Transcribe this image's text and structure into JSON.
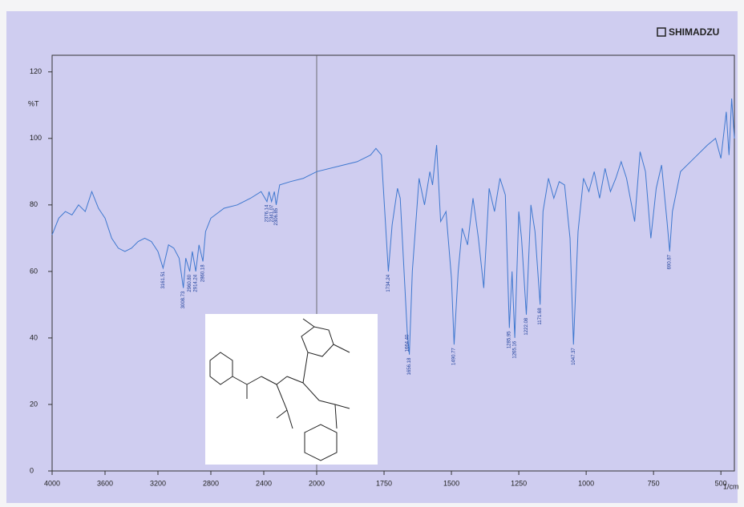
{
  "chart_data": {
    "type": "line",
    "brand": "SHIMADZU",
    "y_label": "%T",
    "x_label": "1/cm",
    "x_scale_break": 2000,
    "xlim": [
      4000,
      450
    ],
    "ylim": [
      0,
      125
    ],
    "xticks": [
      4000,
      3600,
      3200,
      2800,
      2400,
      2000,
      1750,
      1500,
      1250,
      1000,
      750,
      500
    ],
    "yticks": [
      0,
      20,
      40,
      60,
      80,
      100,
      120
    ],
    "color": "#3f78cf",
    "x": [
      4000,
      3950,
      3900,
      3850,
      3800,
      3750,
      3700,
      3650,
      3600,
      3550,
      3500,
      3450,
      3400,
      3350,
      3300,
      3250,
      3200,
      3161,
      3120,
      3080,
      3040,
      3008,
      2990,
      2960,
      2940,
      2914,
      2890,
      2860,
      2840,
      2800,
      2700,
      2600,
      2500,
      2420,
      2376,
      2360,
      2341,
      2320,
      2306,
      2280,
      2200,
      2100,
      2000,
      1900,
      1850,
      1800,
      1780,
      1760,
      1734,
      1720,
      1700,
      1690,
      1664,
      1656,
      1645,
      1620,
      1600,
      1580,
      1570,
      1555,
      1540,
      1520,
      1500,
      1490,
      1475,
      1460,
      1440,
      1420,
      1400,
      1380,
      1360,
      1340,
      1320,
      1300,
      1285,
      1275,
      1265,
      1250,
      1240,
      1222,
      1205,
      1190,
      1171,
      1160,
      1140,
      1120,
      1100,
      1080,
      1060,
      1047,
      1030,
      1010,
      990,
      970,
      950,
      930,
      910,
      890,
      870,
      850,
      820,
      800,
      780,
      760,
      740,
      720,
      700,
      690,
      680,
      650,
      600,
      550,
      520,
      500,
      480,
      470,
      460,
      450
    ],
    "values": [
      71,
      76,
      78,
      77,
      80,
      78,
      84,
      79,
      76,
      70,
      67,
      66,
      67,
      69,
      70,
      69,
      66,
      61,
      68,
      67,
      64,
      55,
      64,
      60,
      66,
      60,
      68,
      63,
      72,
      76,
      79,
      80,
      82,
      84,
      81,
      84,
      81,
      84,
      80,
      86,
      87,
      88,
      90,
      92,
      93,
      95,
      97,
      95,
      60,
      74,
      85,
      82,
      42,
      35,
      60,
      88,
      80,
      90,
      86,
      98,
      75,
      78,
      58,
      38,
      60,
      73,
      68,
      82,
      70,
      55,
      85,
      78,
      88,
      83,
      43,
      60,
      40,
      78,
      70,
      47,
      80,
      72,
      50,
      78,
      88,
      82,
      87,
      86,
      70,
      38,
      72,
      88,
      84,
      90,
      82,
      91,
      84,
      88,
      93,
      88,
      75,
      96,
      90,
      70,
      85,
      92,
      75,
      66,
      78,
      90,
      94,
      98,
      100,
      94,
      108,
      95,
      112,
      100
    ],
    "peaks": [
      {
        "x": 3161.51,
        "label": "3161.51"
      },
      {
        "x": 3008.73,
        "label": "3008.73"
      },
      {
        "x": 2960.8,
        "label": "2960.80"
      },
      {
        "x": 2914.24,
        "label": "2914.24"
      },
      {
        "x": 2860.18,
        "label": "2860.18"
      },
      {
        "x": 2376.14,
        "label": "2376.14"
      },
      {
        "x": 2341.07,
        "label": "2341.07"
      },
      {
        "x": 2306.85,
        "label": "2306.85"
      },
      {
        "x": 1734.24,
        "label": "1734.24"
      },
      {
        "x": 1664.4,
        "label": "1664.40"
      },
      {
        "x": 1656.18,
        "label": "1656.18"
      },
      {
        "x": 1490.77,
        "label": "1490.77"
      },
      {
        "x": 1285.95,
        "label": "1285.95"
      },
      {
        "x": 1265.16,
        "label": "1265.16"
      },
      {
        "x": 1222.08,
        "label": "1222.08"
      },
      {
        "x": 1171.68,
        "label": "1171.68"
      },
      {
        "x": 1047.37,
        "label": "1047.37"
      },
      {
        "x": 690.87,
        "label": "690.87"
      }
    ]
  }
}
